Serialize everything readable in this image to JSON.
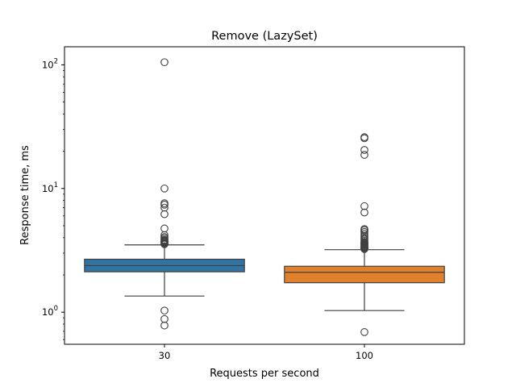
{
  "chart_data": {
    "type": "box",
    "title": "Remove (LazySet)",
    "xlabel": "Requests per second",
    "ylabel": "Response time, ms",
    "yscale": "log",
    "ylim": [
      0.55,
      140
    ],
    "yticks": [
      {
        "value": 1,
        "base": "10",
        "exp": "0"
      },
      {
        "value": 10,
        "base": "10",
        "exp": "1"
      },
      {
        "value": 100,
        "base": "10",
        "exp": "2"
      }
    ],
    "categories": [
      "30",
      "100"
    ],
    "boxes": [
      {
        "category": "30",
        "color": "#3274a1",
        "q1": 2.12,
        "median": 2.38,
        "q3": 2.68,
        "whisker_low": 1.35,
        "whisker_high": 3.5,
        "outliers": [
          105,
          10.0,
          7.6,
          7.4,
          7.0,
          6.2,
          4.75,
          4.2,
          4.05,
          3.95,
          3.85,
          3.8,
          3.75,
          3.7,
          3.68,
          3.62,
          3.58,
          3.55,
          1.03,
          0.88,
          0.78
        ]
      },
      {
        "category": "100",
        "color": "#e1812c",
        "q1": 1.73,
        "median": 2.1,
        "q3": 2.35,
        "whisker_low": 1.03,
        "whisker_high": 3.2,
        "outliers": [
          26.0,
          25.5,
          20.5,
          18.7,
          7.2,
          6.4,
          4.7,
          4.6,
          4.45,
          4.3,
          4.15,
          4.0,
          3.9,
          3.8,
          3.7,
          3.65,
          3.6,
          3.55,
          3.5,
          3.45,
          3.4,
          3.35,
          3.3,
          3.27,
          3.24,
          0.69
        ]
      }
    ]
  }
}
